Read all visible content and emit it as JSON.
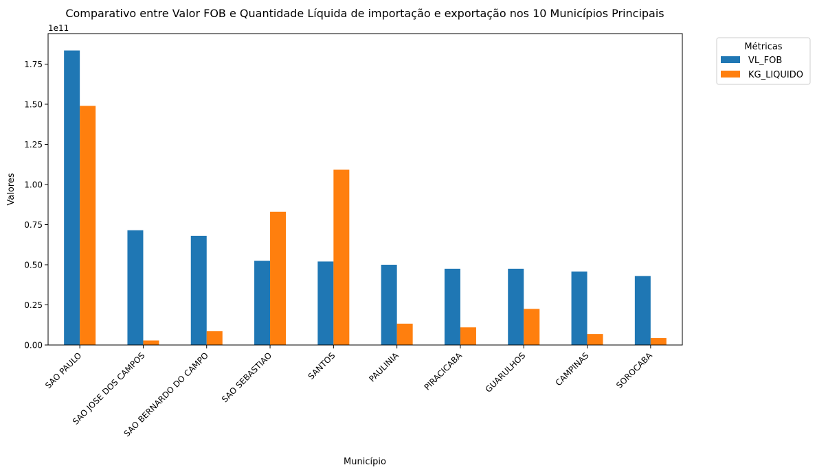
{
  "chart_data": {
    "type": "bar",
    "title": "Comparativo entre Valor FOB e Quantidade Líquida de importação e exportação nos 10 Municípios Principais",
    "xlabel": "Município",
    "ylabel": "Valores",
    "y_offset_label": "1e11",
    "ylim": [
      0,
      1.94
    ],
    "y_ticks": [
      "0.00",
      "0.25",
      "0.50",
      "0.75",
      "1.00",
      "1.25",
      "1.50",
      "1.75"
    ],
    "categories": [
      "SAO PAULO",
      "SAO JOSE DOS CAMPOS",
      "SAO BERNARDO DO CAMPO",
      "SAO SEBASTIAO",
      "SANTOS",
      "PAULINIA",
      "PIRACICABA",
      "GUARULHOS",
      "CAMPINAS",
      "SOROCABA"
    ],
    "series": [
      {
        "name": "VL_FOB",
        "color": "#1f77b4",
        "values": [
          1.835,
          0.715,
          0.68,
          0.525,
          0.52,
          0.5,
          0.475,
          0.475,
          0.458,
          0.43
        ]
      },
      {
        "name": "KG_LIQUIDO",
        "color": "#ff7f0e",
        "values": [
          1.49,
          0.028,
          0.086,
          0.83,
          1.092,
          0.133,
          0.11,
          0.225,
          0.068,
          0.043
        ]
      }
    ],
    "legend": {
      "title": "Métricas",
      "placement": "outside-top-right"
    },
    "grid": false
  }
}
